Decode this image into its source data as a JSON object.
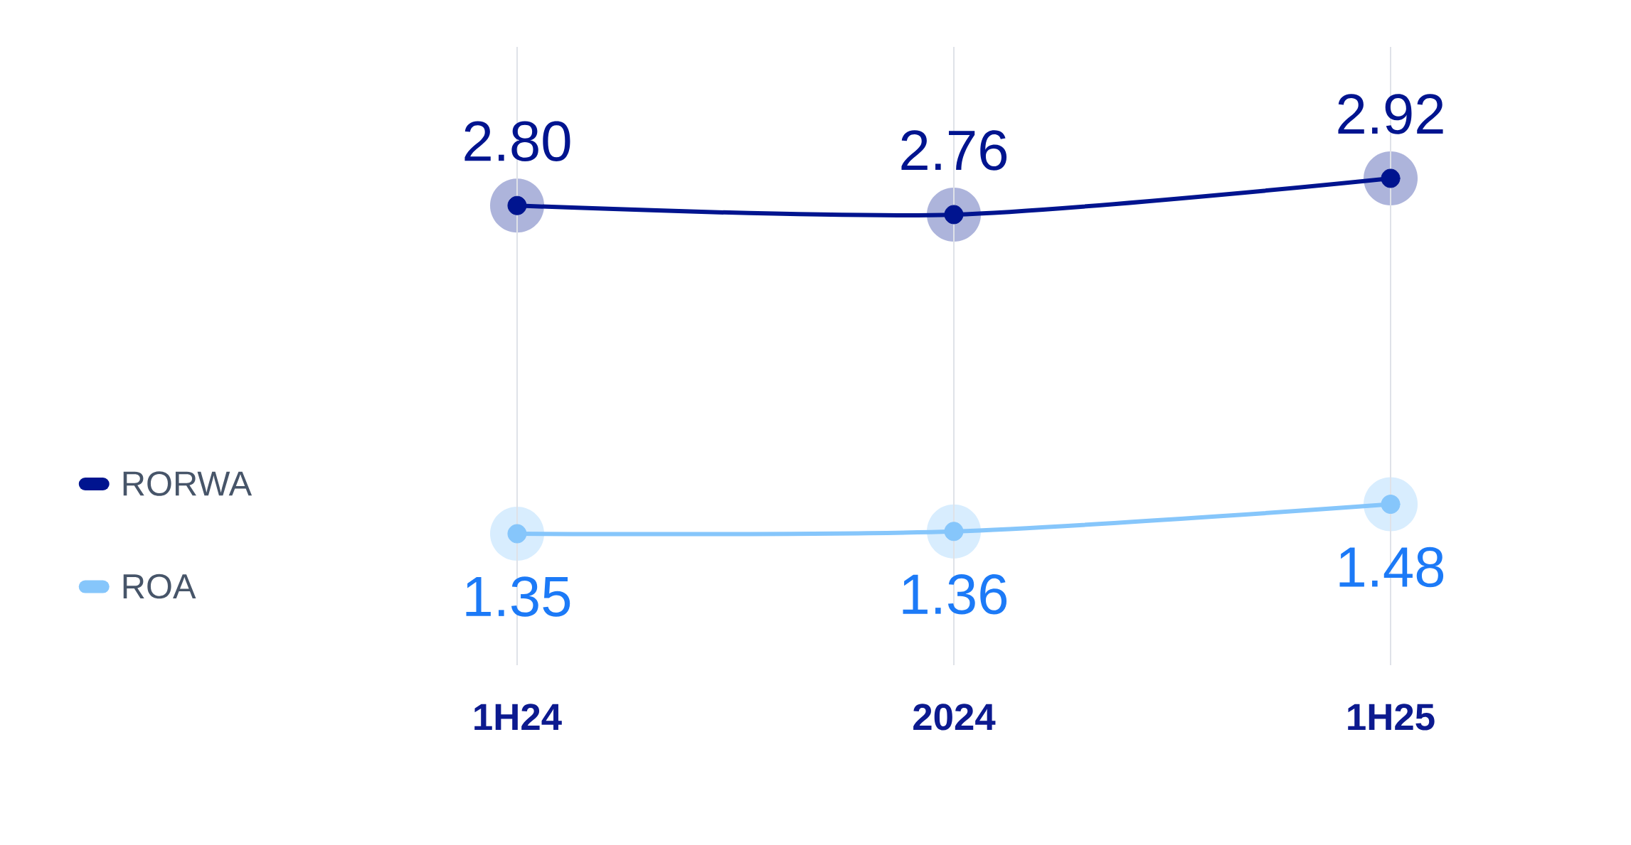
{
  "chart_data": {
    "type": "line",
    "categories": [
      "1H24",
      "2024",
      "1H25"
    ],
    "series": [
      {
        "name": "RORWA",
        "color": "#00148f",
        "values": [
          2.8,
          2.76,
          2.92
        ],
        "value_labels": [
          "2.80",
          "2.76",
          "2.92"
        ]
      },
      {
        "name": "ROA",
        "color": "#86c6fb",
        "values": [
          1.35,
          1.36,
          1.48
        ],
        "value_labels": [
          "1.35",
          "1.36",
          "1.48"
        ]
      }
    ],
    "grid": "x",
    "legend": "left",
    "marker": "circle",
    "line_style": "solid",
    "tick_labels": "x"
  }
}
